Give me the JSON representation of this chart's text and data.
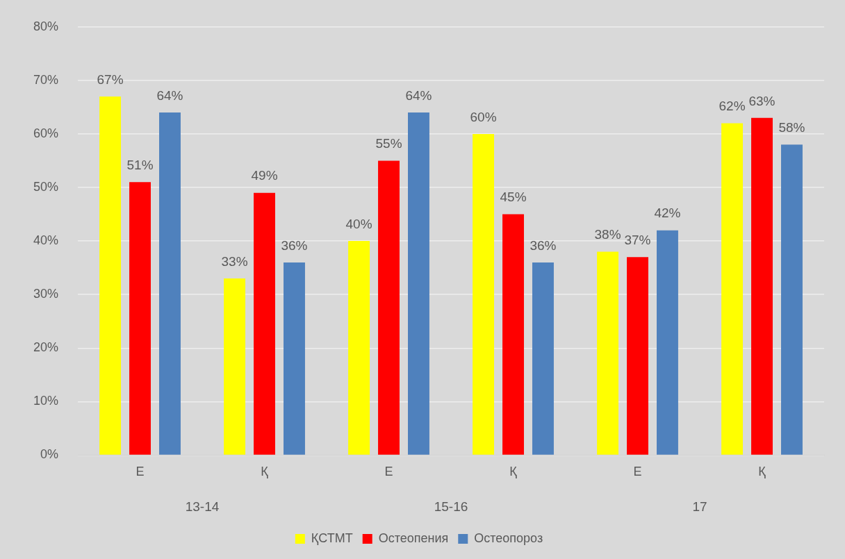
{
  "chart_data": {
    "type": "bar",
    "categories": [
      "Е",
      "Қ",
      "Е",
      "Қ",
      "Е",
      "Қ"
    ],
    "series": [
      {
        "name": "ҚСТМТ",
        "color": "#ffff00",
        "values": [
          67,
          33,
          40,
          60,
          38,
          62
        ],
        "value_labels": [
          "67%",
          "33%",
          "40%",
          "60%",
          "38%",
          "62%"
        ]
      },
      {
        "name": "Остеопения",
        "color": "#ff0000",
        "values": [
          51,
          49,
          55,
          45,
          37,
          63
        ],
        "value_labels": [
          "51%",
          "49%",
          "55%",
          "45%",
          "37%",
          "63%"
        ]
      },
      {
        "name": "Остеопороз",
        "color": "#4f81bd",
        "values": [
          64,
          36,
          64,
          36,
          42,
          58
        ],
        "value_labels": [
          "64%",
          "36%",
          "64%",
          "36%",
          "42%",
          "58%"
        ]
      }
    ],
    "ylim": [
      0,
      80
    ],
    "yticks": [
      {
        "value": 0,
        "label": "0%"
      },
      {
        "value": 10,
        "label": "10%"
      },
      {
        "value": 20,
        "label": "20%"
      },
      {
        "value": 30,
        "label": "30%"
      },
      {
        "value": 40,
        "label": "40%"
      },
      {
        "value": 50,
        "label": "50%"
      },
      {
        "value": 60,
        "label": "60%"
      },
      {
        "value": 70,
        "label": "70%"
      },
      {
        "value": 80,
        "label": "80%"
      }
    ],
    "annotations": [
      "13-14",
      "15-16",
      "17"
    ],
    "grid": "y",
    "legend": "bottom"
  }
}
